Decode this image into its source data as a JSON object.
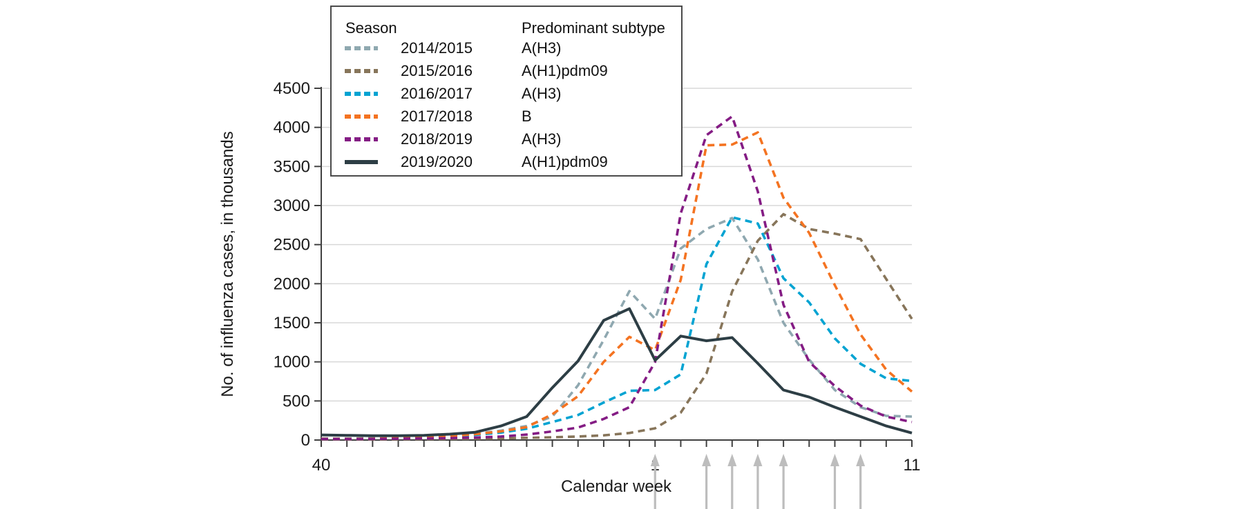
{
  "figure": {
    "y_axis_title": "No. of influenza cases, in thousands",
    "x_axis_title": "Calendar week",
    "x_tick_labels": [
      {
        "label": "40",
        "week_index": 0
      },
      {
        "label": "1",
        "week_index": 13
      },
      {
        "label": "11",
        "week_index": 23
      }
    ],
    "y_tick_labels": [
      "0",
      "500",
      "1000",
      "1500",
      "2000",
      "2500",
      "3000",
      "3500",
      "4000",
      "4500"
    ],
    "axis_color": "#404040",
    "gridline_color": "#d8d8d8",
    "arrow_color": "#bdbdbd"
  },
  "legend": {
    "season_header": "Season",
    "subtype_header": "Predominant subtype",
    "entries": [
      {
        "season": "2014/2015",
        "subtype": "A(H3)",
        "color": "#8fa8b0",
        "dashed": true
      },
      {
        "season": "2015/2016",
        "subtype": "A(H1)pdm09",
        "color": "#87755a",
        "dashed": true
      },
      {
        "season": "2016/2017",
        "subtype": "A(H3)",
        "color": "#00a3d2",
        "dashed": true
      },
      {
        "season": "2017/2018",
        "subtype": "B",
        "color": "#f47321",
        "dashed": true
      },
      {
        "season": "2018/2019",
        "subtype": "A(H3)",
        "color": "#841c84",
        "dashed": true
      },
      {
        "season": "2019/2020",
        "subtype": "A(H1)pdm09",
        "color": "#2d3e45",
        "dashed": false
      }
    ]
  },
  "chart_data": {
    "type": "line",
    "title": "",
    "xlabel": "Calendar week",
    "ylabel": "No. of influenza cases, in thousands",
    "ylim": [
      0,
      4500
    ],
    "y_ticks": [
      0,
      500,
      1000,
      1500,
      2000,
      2500,
      3000,
      3500,
      4000,
      4500
    ],
    "grid": true,
    "legend_position": "top-left",
    "x_weeks": [
      "40",
      "41",
      "42",
      "43",
      "44",
      "45",
      "46",
      "47",
      "48",
      "49",
      "50",
      "51",
      "52",
      "1",
      "2",
      "3",
      "4",
      "5",
      "6",
      "7",
      "8",
      "9",
      "10",
      "11"
    ],
    "series": [
      {
        "name": "2014/2015",
        "subtype": "A(H3)",
        "color": "#8fa8b0",
        "style": "dashed",
        "values": [
          20,
          20,
          25,
          30,
          40,
          55,
          80,
          120,
          180,
          300,
          700,
          1280,
          1905,
          1550,
          2450,
          2700,
          2840,
          2310,
          1500,
          1030,
          640,
          420,
          310,
          300
        ]
      },
      {
        "name": "2015/2016",
        "subtype": "A(H1)pdm09",
        "color": "#87755a",
        "style": "dashed",
        "values": [
          8,
          8,
          8,
          10,
          12,
          15,
          18,
          22,
          28,
          35,
          45,
          60,
          90,
          150,
          350,
          850,
          1900,
          2550,
          2890,
          2700,
          2640,
          2570,
          2060,
          1550
        ]
      },
      {
        "name": "2016/2017",
        "subtype": "A(H3)",
        "color": "#00a3d2",
        "style": "dashed",
        "values": [
          15,
          15,
          18,
          22,
          30,
          45,
          65,
          95,
          145,
          230,
          320,
          480,
          630,
          640,
          840,
          2250,
          2850,
          2770,
          2070,
          1760,
          1300,
          975,
          790,
          755
        ]
      },
      {
        "name": "2017/2018",
        "subtype": "B",
        "color": "#f47321",
        "style": "dashed",
        "values": [
          15,
          15,
          18,
          25,
          35,
          50,
          75,
          110,
          165,
          330,
          560,
          1000,
          1320,
          1150,
          2050,
          3770,
          3780,
          3935,
          3100,
          2650,
          1980,
          1350,
          900,
          620
        ]
      },
      {
        "name": "2018/2019",
        "subtype": "A(H3)",
        "color": "#841c84",
        "style": "dashed",
        "values": [
          12,
          12,
          14,
          16,
          20,
          25,
          32,
          45,
          70,
          110,
          160,
          270,
          420,
          1000,
          2900,
          3900,
          4140,
          3180,
          1730,
          1000,
          690,
          440,
          300,
          230
        ]
      },
      {
        "name": "2019/2020",
        "subtype": "A(H1)pdm09",
        "color": "#2d3e45",
        "style": "solid",
        "values": [
          65,
          60,
          55,
          55,
          60,
          75,
          100,
          180,
          300,
          670,
          1010,
          1530,
          1680,
          1020,
          1330,
          1270,
          1310,
          980,
          640,
          550,
          420,
          300,
          180,
          90
        ]
      }
    ],
    "arrows_at_weeks": [
      "1",
      "3",
      "4",
      "5",
      "6",
      "8",
      "9"
    ]
  }
}
